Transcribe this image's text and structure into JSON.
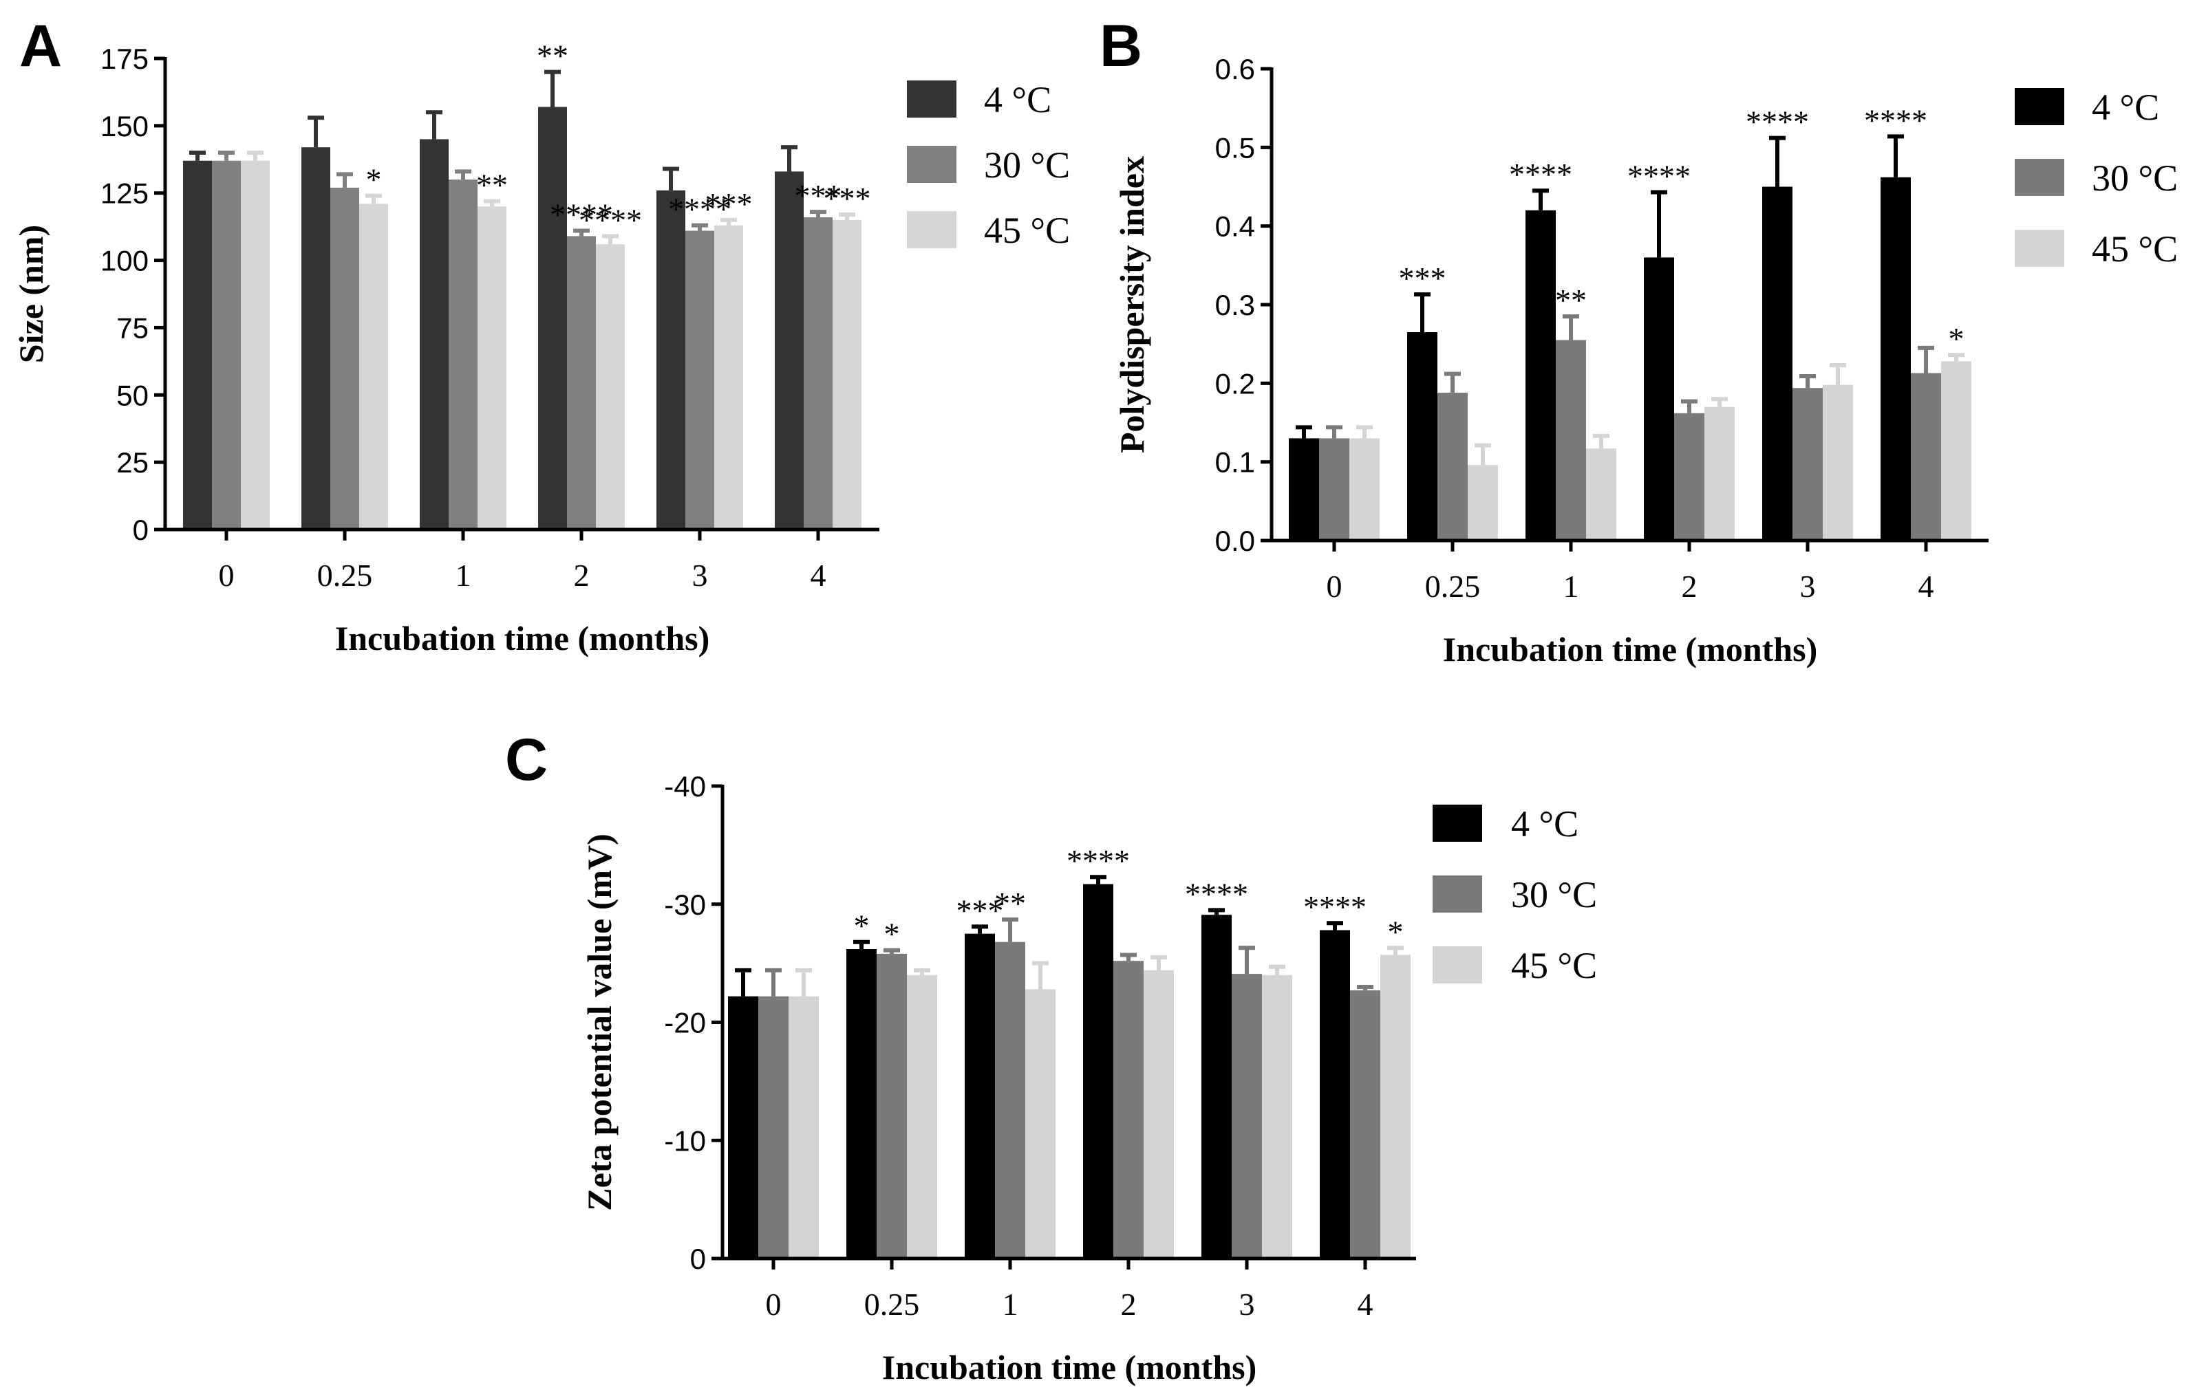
{
  "colors": {
    "4C_dark": "#333333",
    "30C_dark": "#808080",
    "45C_dark": "#d6d6d6",
    "4C_black": "#000000",
    "30C_black": "#7a7a7a",
    "45C_black": "#d4d4d4"
  },
  "chart_data": [
    {
      "id": "A",
      "type": "bar",
      "panel_label": "A",
      "xlabel": "Incubation time (months)",
      "ylabel": "Size (nm)",
      "categories": [
        "0",
        "0.25",
        "1",
        "2",
        "3",
        "4"
      ],
      "ylim": [
        0,
        175
      ],
      "yticks": [
        0,
        25,
        50,
        75,
        100,
        125,
        150,
        175
      ],
      "ytick_labels": [
        "0",
        "25",
        "50",
        "75",
        "100",
        "125",
        "150",
        "175"
      ],
      "legend_position": "top-right",
      "series": [
        {
          "name": "4 °C",
          "color_key": "4C_dark",
          "values": [
            137,
            142,
            145,
            157,
            126,
            133
          ],
          "errors": [
            3,
            11,
            10,
            13,
            8,
            9
          ],
          "sig": [
            "",
            "",
            "",
            "**",
            "",
            ""
          ]
        },
        {
          "name": "30 °C",
          "color_key": "30C_dark",
          "values": [
            137,
            127,
            130,
            109,
            111,
            116
          ],
          "errors": [
            3,
            5,
            3,
            2,
            2,
            2
          ],
          "sig": [
            "",
            "",
            "",
            "****",
            "****",
            "***"
          ]
        },
        {
          "name": "45 °C",
          "color_key": "45C_dark",
          "values": [
            137,
            121,
            120,
            106,
            113,
            115
          ],
          "errors": [
            3,
            3,
            2,
            3,
            2,
            2
          ],
          "sig": [
            "",
            "*",
            "**",
            "****",
            "***",
            "***"
          ]
        }
      ]
    },
    {
      "id": "B",
      "type": "bar",
      "panel_label": "B",
      "xlabel": "Incubation time (months)",
      "ylabel": "Polydispersity index",
      "categories": [
        "0",
        "0.25",
        "1",
        "2",
        "3",
        "4"
      ],
      "ylim": [
        0,
        0.6
      ],
      "yticks": [
        0,
        0.1,
        0.2,
        0.3,
        0.4,
        0.5,
        0.6
      ],
      "ytick_labels": [
        "0.0",
        "0.1",
        "0.2",
        "0.3",
        "0.4",
        "0.5",
        "0.6"
      ],
      "legend_position": "top-right",
      "series": [
        {
          "name": "4 °C",
          "color_key": "4C_black",
          "values": [
            0.13,
            0.265,
            0.42,
            0.36,
            0.45,
            0.462
          ],
          "errors": [
            0.014,
            0.048,
            0.025,
            0.083,
            0.062,
            0.052
          ],
          "sig": [
            "",
            "***",
            "****",
            "****",
            "****",
            "****"
          ]
        },
        {
          "name": "30 °C",
          "color_key": "30C_black",
          "values": [
            0.13,
            0.188,
            0.255,
            0.162,
            0.194,
            0.213
          ],
          "errors": [
            0.014,
            0.024,
            0.03,
            0.015,
            0.015,
            0.032
          ],
          "sig": [
            "",
            "",
            "**",
            "",
            "",
            ""
          ]
        },
        {
          "name": "45 °C",
          "color_key": "45C_black",
          "values": [
            0.13,
            0.096,
            0.117,
            0.17,
            0.198,
            0.228
          ],
          "errors": [
            0.014,
            0.025,
            0.016,
            0.01,
            0.025,
            0.008
          ],
          "sig": [
            "",
            "",
            "",
            "",
            "",
            "*"
          ]
        }
      ]
    },
    {
      "id": "C",
      "type": "bar",
      "panel_label": "C",
      "xlabel": "Incubation time (months)",
      "ylabel": "Zeta potential value (mV)",
      "categories": [
        "0",
        "0.25",
        "1",
        "2",
        "3",
        "4"
      ],
      "ylim": [
        0,
        -40
      ],
      "yticks": [
        0,
        -10,
        -20,
        -30,
        -40
      ],
      "ytick_labels": [
        "0",
        "-10",
        "-20",
        "-30",
        "-40"
      ],
      "legend_position": "top-right",
      "series": [
        {
          "name": "4 °C",
          "color_key": "4C_black",
          "values": [
            -22.2,
            -26.2,
            -27.5,
            -31.7,
            -29.1,
            -27.8
          ],
          "errors": [
            2.2,
            0.6,
            0.6,
            0.6,
            0.4,
            0.6
          ],
          "sig": [
            "",
            "*",
            "***",
            "****",
            "****",
            "****"
          ]
        },
        {
          "name": "30 °C",
          "color_key": "30C_black",
          "values": [
            -22.2,
            -25.8,
            -26.8,
            -25.2,
            -24.1,
            -22.7
          ],
          "errors": [
            2.2,
            0.3,
            1.9,
            0.5,
            2.2,
            0.3
          ],
          "sig": [
            "",
            "*",
            "**",
            "",
            "",
            ""
          ]
        },
        {
          "name": "45 °C",
          "color_key": "45C_black",
          "values": [
            -22.2,
            -24.0,
            -22.8,
            -24.4,
            -24.0,
            -25.7
          ],
          "errors": [
            2.2,
            0.4,
            2.2,
            1.1,
            0.7,
            0.6
          ],
          "sig": [
            "",
            "",
            "",
            "",
            "",
            "*"
          ]
        }
      ]
    }
  ]
}
